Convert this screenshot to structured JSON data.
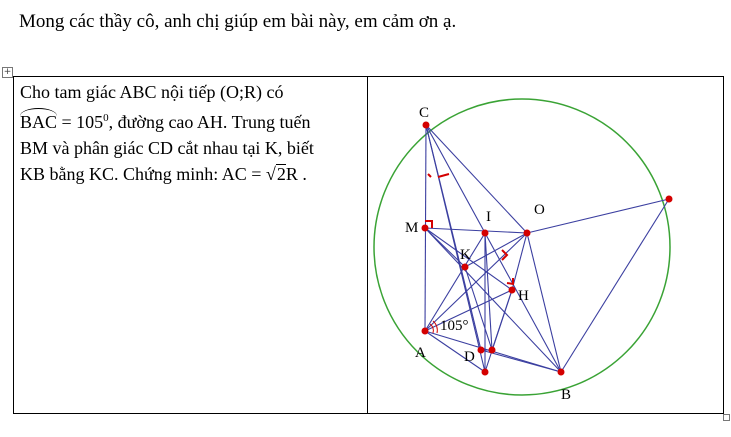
{
  "heading": "Mong các thầy cô, anh chị giúp em bài này, em cảm ơn ạ.",
  "problem": {
    "line1": "Cho tam giác ABC nội tiếp (O;R) có",
    "angle_name": "BAC",
    "line2_rest": " = 105",
    "degree": "0",
    "line2_tail": ", đường cao AH. Trung tuến",
    "line3": "BM và phân giác CD cắt nhau tại K, biết",
    "line4_start": "KB bằng KC. Chứng minh: AC = ",
    "radical": "√",
    "radicand": "2",
    "line4_end": "R ."
  },
  "figure": {
    "labels": {
      "C": "C",
      "O": "O",
      "M": "M",
      "I": "I",
      "K": "K",
      "H": "H",
      "A": "A",
      "D": "D",
      "B": "B",
      "angle": "105°"
    },
    "colors": {
      "circle": "#3aa335",
      "lines": "#3b3fa0",
      "points": "#d40000",
      "marks": "#d40000"
    }
  }
}
